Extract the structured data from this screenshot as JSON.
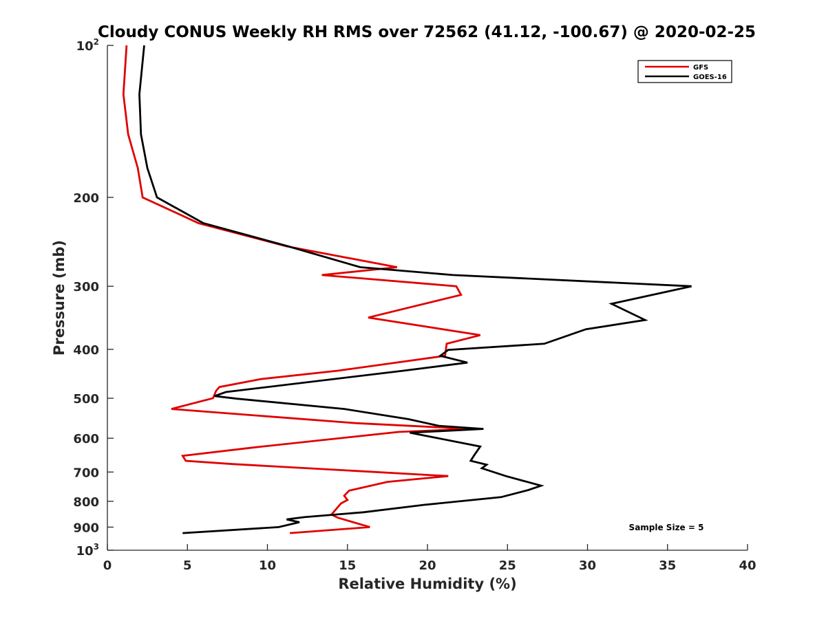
{
  "chart_data": {
    "type": "line",
    "title": "Cloudy CONUS Weekly RH RMS over 72562 (41.12, -100.67) @ 2020-02-25",
    "xlabel": "Relative Humidity (%)",
    "ylabel": "Pressure (mb)",
    "xlim": [
      0,
      40
    ],
    "ylim": [
      100,
      1000
    ],
    "y_scale": "log",
    "y_reversed": true,
    "grid": false,
    "legend_position": "top-right",
    "x_ticks": [
      0,
      5,
      10,
      15,
      20,
      25,
      30,
      35,
      40
    ],
    "y_ticks": [
      {
        "value": 100,
        "base": "10",
        "exp": "2"
      },
      {
        "value": 200,
        "label": "200"
      },
      {
        "value": 300,
        "label": "300"
      },
      {
        "value": 400,
        "label": "400"
      },
      {
        "value": 500,
        "label": "500"
      },
      {
        "value": 600,
        "label": "600"
      },
      {
        "value": 700,
        "label": "700"
      },
      {
        "value": 800,
        "label": "800"
      },
      {
        "value": 900,
        "label": "900"
      },
      {
        "value": 1000,
        "base": "10",
        "exp": "3"
      }
    ],
    "series": [
      {
        "name": "GFS",
        "color": "#e00000",
        "points": [
          [
            1.2,
            100
          ],
          [
            1.0,
            125
          ],
          [
            1.3,
            150
          ],
          [
            1.9,
            175
          ],
          [
            2.2,
            200
          ],
          [
            5.7,
            225
          ],
          [
            11.2,
            250
          ],
          [
            18.1,
            275
          ],
          [
            13.4,
            285
          ],
          [
            21.8,
            300
          ],
          [
            22.1,
            312
          ],
          [
            16.3,
            346
          ],
          [
            23.3,
            375
          ],
          [
            21.2,
            390
          ],
          [
            21.1,
            412
          ],
          [
            14.4,
            441
          ],
          [
            9.6,
            458
          ],
          [
            7.0,
            475
          ],
          [
            6.8,
            483
          ],
          [
            6.6,
            500
          ],
          [
            4.0,
            525
          ],
          [
            11.3,
            547
          ],
          [
            15.5,
            560
          ],
          [
            22.7,
            575
          ],
          [
            18.2,
            583
          ],
          [
            9.3,
            625
          ],
          [
            4.7,
            650
          ],
          [
            4.9,
            665
          ],
          [
            7.8,
            675
          ],
          [
            21.3,
            713
          ],
          [
            17.5,
            732
          ],
          [
            15.1,
            762
          ],
          [
            14.8,
            780
          ],
          [
            15.0,
            795
          ],
          [
            14.6,
            808
          ],
          [
            14.0,
            850
          ],
          [
            14.4,
            862
          ],
          [
            16.4,
            900
          ],
          [
            11.4,
            925
          ]
        ]
      },
      {
        "name": "GOES-16",
        "color": "#000000",
        "points": [
          [
            2.3,
            100
          ],
          [
            2.0,
            125
          ],
          [
            2.1,
            150
          ],
          [
            2.5,
            175
          ],
          [
            3.1,
            200
          ],
          [
            6.0,
            225
          ],
          [
            11.3,
            250
          ],
          [
            15.8,
            275
          ],
          [
            21.6,
            285
          ],
          [
            36.5,
            300
          ],
          [
            31.5,
            325
          ],
          [
            33.6,
            350
          ],
          [
            29.9,
            365
          ],
          [
            27.3,
            390
          ],
          [
            21.3,
            401
          ],
          [
            20.8,
            412
          ],
          [
            22.5,
            425
          ],
          [
            18.5,
            441
          ],
          [
            7.4,
            486
          ],
          [
            6.7,
            495
          ],
          [
            8.1,
            501
          ],
          [
            14.8,
            525
          ],
          [
            18.8,
            550
          ],
          [
            20.7,
            567
          ],
          [
            23.5,
            575
          ],
          [
            18.9,
            585
          ],
          [
            23.3,
            623
          ],
          [
            22.9,
            650
          ],
          [
            22.7,
            665
          ],
          [
            23.7,
            677
          ],
          [
            23.4,
            688
          ],
          [
            24.9,
            713
          ],
          [
            27.1,
            745
          ],
          [
            26.3,
            760
          ],
          [
            24.6,
            785
          ],
          [
            19.8,
            813
          ],
          [
            16.0,
            841
          ],
          [
            12.3,
            860
          ],
          [
            11.2,
            869
          ],
          [
            12.0,
            880
          ],
          [
            10.7,
            900
          ],
          [
            4.7,
            925
          ]
        ]
      }
    ],
    "annotations": [
      {
        "text": "Sample Size = 5",
        "x": 37,
        "y": 900
      }
    ]
  }
}
